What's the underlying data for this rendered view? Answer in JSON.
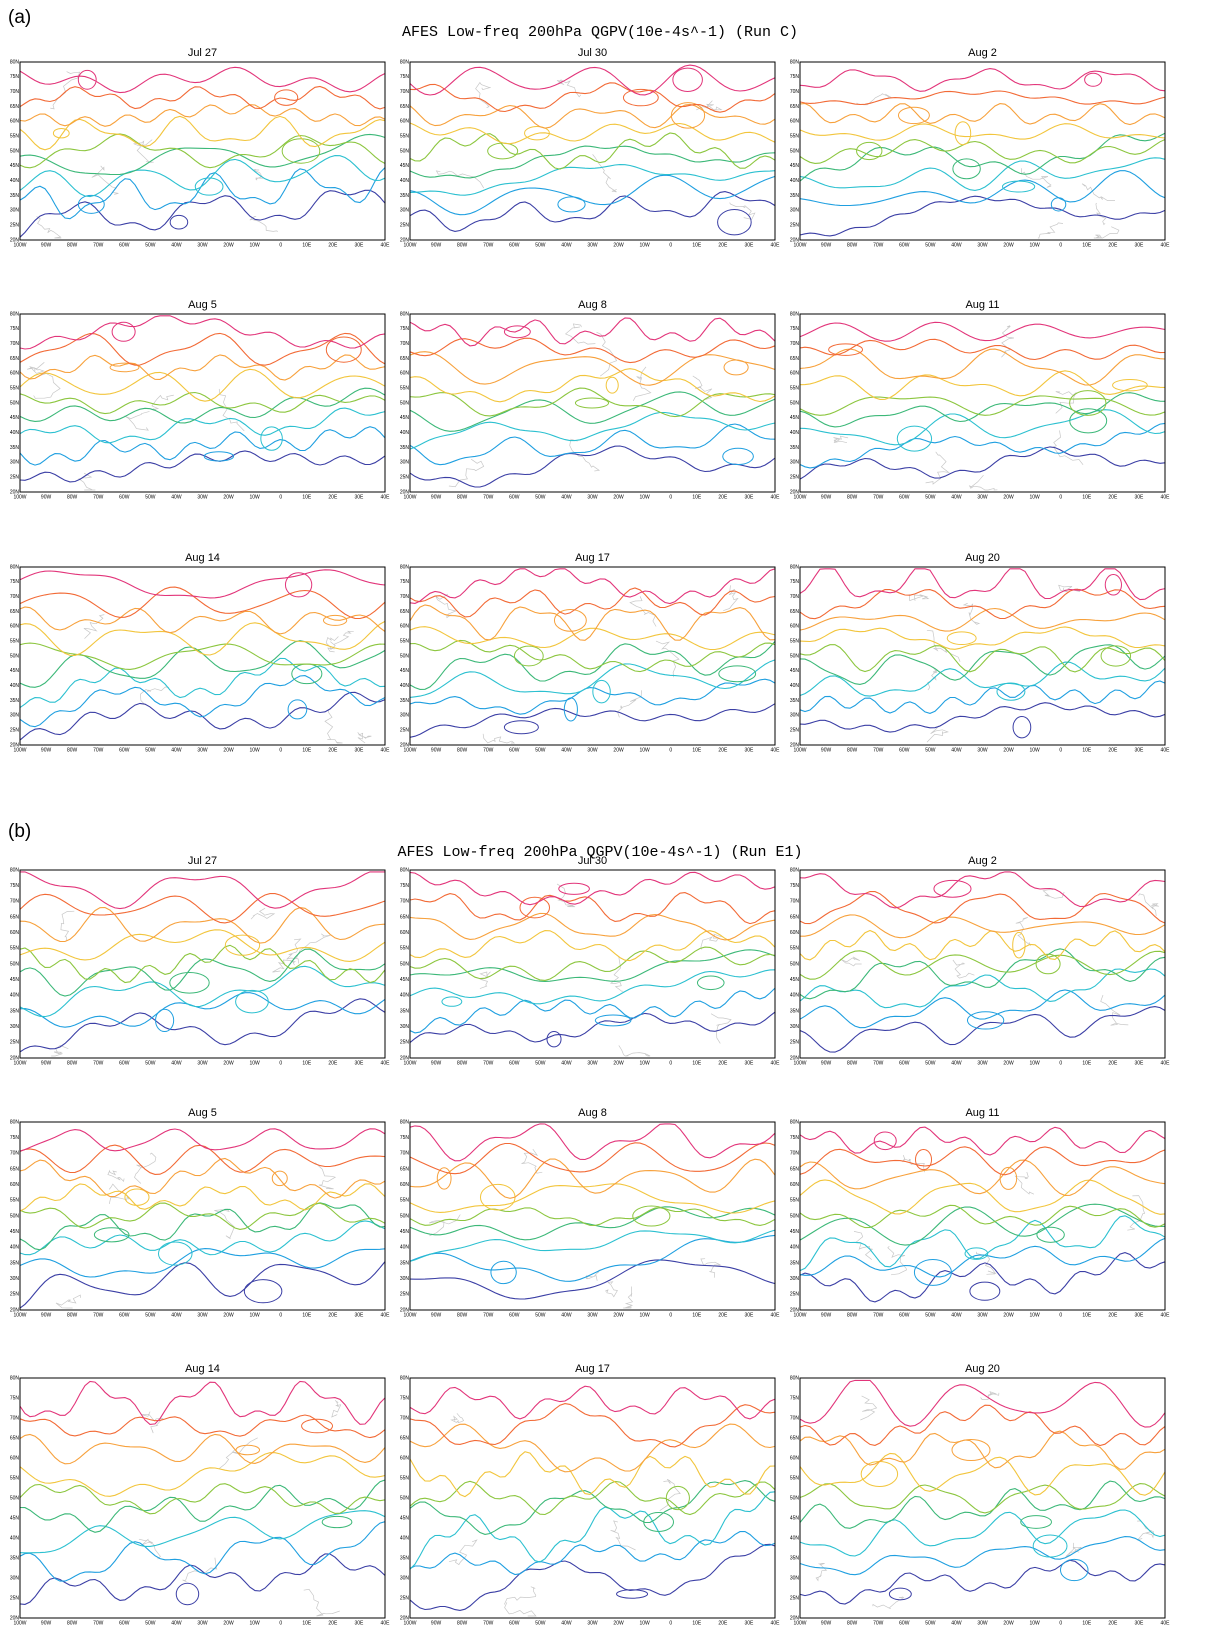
{
  "figures": [
    {
      "label": "(a)",
      "title": "AFES Low-freq 200hPa QGPV(10e-4s^-1) (Run C)",
      "panels": [
        "Jul 27",
        "Jul 30",
        "Aug 2",
        "Aug 5",
        "Aug 8",
        "Aug 11",
        "Aug 14",
        "Aug 17",
        "Aug 20"
      ]
    },
    {
      "label": "(b)",
      "title": "AFES Low-freq 200hPa QGPV(10e-4s^-1) (Run E1)",
      "panels": [
        "Jul 27",
        "Jul 30",
        "Aug 2",
        "Aug 5",
        "Aug 8",
        "Aug 11",
        "Aug 14",
        "Aug 17",
        "Aug 20"
      ]
    }
  ],
  "axes": {
    "xticks": [
      "100W",
      "90W",
      "80W",
      "70W",
      "60W",
      "50W",
      "40W",
      "30W",
      "20W",
      "10W",
      "0",
      "10E",
      "20E",
      "30E",
      "40E"
    ],
    "yticks": [
      "80N",
      "75N",
      "70N",
      "65N",
      "60N",
      "55N",
      "50N",
      "45N",
      "40N",
      "35N",
      "30N",
      "25N",
      "20N"
    ]
  }
}
